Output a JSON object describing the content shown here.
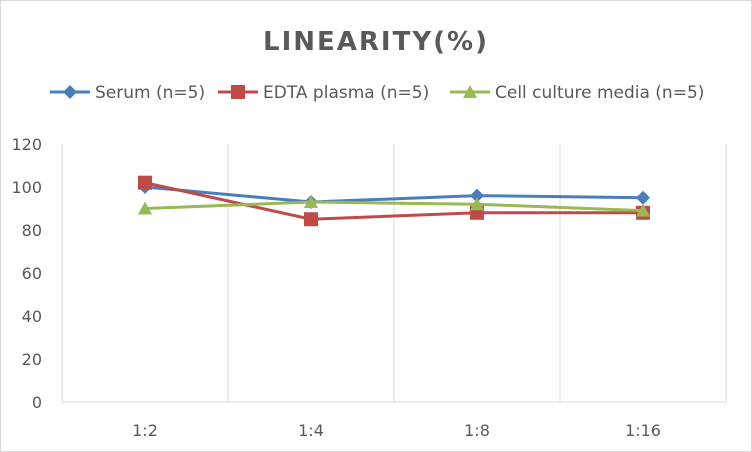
{
  "chart_data": {
    "type": "line",
    "title": "LINEARITY(%)",
    "categories": [
      "1:2",
      "1:4",
      "1:8",
      "1:16"
    ],
    "ylim": [
      0,
      120
    ],
    "yticks": [
      0,
      20,
      40,
      60,
      80,
      100,
      120
    ],
    "grid": "vertical",
    "legend": "top",
    "series": [
      {
        "name": "Serum (n=5)",
        "color": "#4a7ebb",
        "marker": "diamond",
        "values": [
          100,
          93,
          96,
          95
        ]
      },
      {
        "name": "EDTA plasma (n=5)",
        "color": "#be4b48",
        "marker": "square",
        "values": [
          102,
          85,
          88,
          88
        ]
      },
      {
        "name": "Cell culture media (n=5)",
        "color": "#98b954",
        "marker": "triangle",
        "values": [
          90,
          93,
          92,
          89
        ]
      }
    ]
  }
}
